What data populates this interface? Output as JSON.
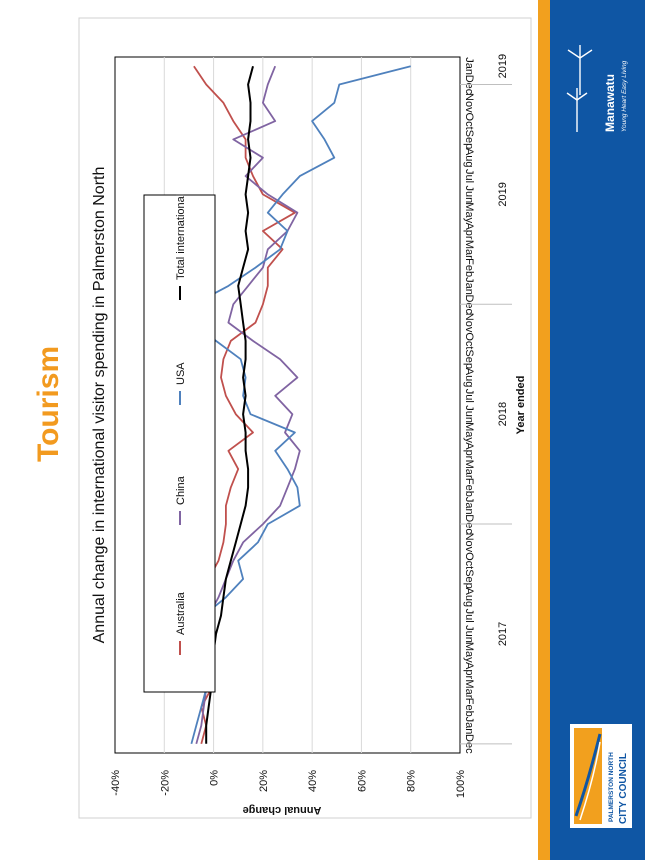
{
  "slide": {
    "heading": "Tourism",
    "chart_title": "Annual change in international visitor spending in Palmerston North",
    "colors": {
      "heading": "#f29a1f",
      "band": "#f2a01e",
      "panel": "#0f56a4"
    }
  },
  "branding": {
    "brand_name": "Manawatu",
    "brand_tagline": "Young Heart Easy Living",
    "council_line1": "PALMERSTON NORTH",
    "council_line2": "CITY COUNCIL"
  },
  "chart_data": {
    "type": "line",
    "title": "Annual change in international visitor spending in Palmerston North",
    "xlabel": "Year ended",
    "ylabel": "Annual change",
    "ylim": [
      -40,
      100
    ],
    "yticks": [
      "-40%",
      "-20%",
      "0%",
      "20%",
      "40%",
      "60%",
      "80%",
      "100%"
    ],
    "grid": true,
    "legend_position": "top",
    "x": [
      "Dec",
      "Jan",
      "Feb",
      "Mar",
      "Apr",
      "May",
      "Jun",
      "Jul",
      "Aug",
      "Sep",
      "Oct",
      "Nov",
      "Dec",
      "Jan",
      "Feb",
      "Mar",
      "Apr",
      "May",
      "Jun",
      "Jul",
      "Aug",
      "Sep",
      "Oct",
      "Nov",
      "Dec",
      "Jan",
      "Feb",
      "Mar",
      "Apr",
      "May",
      "Jun",
      "Jul",
      "Aug",
      "Sep",
      "Oct",
      "Nov",
      "Dec",
      "Jan"
    ],
    "year_labels": [
      {
        "label": "2017",
        "month_index": 6
      },
      {
        "label": "2018",
        "month_index": 18
      },
      {
        "label": "2019",
        "month_index": 30
      },
      {
        "label": "2019",
        "month_index": 37
      }
    ],
    "year_separators": [
      0.5,
      12.5,
      24.5,
      36.5
    ],
    "series": [
      {
        "name": "Australia",
        "color": "#c0504d",
        "values": [
          -5,
          -3,
          -5,
          -1,
          -2,
          -1,
          -1,
          -5,
          -3,
          -2,
          2,
          4,
          5,
          5,
          7,
          10,
          6,
          16,
          9,
          5,
          3,
          4,
          7,
          17,
          20,
          22,
          22,
          28,
          20,
          33,
          20,
          16,
          13,
          13,
          8,
          4,
          -3,
          -8
        ]
      },
      {
        "name": "China",
        "color": "#8064a2",
        "values": [
          -7,
          -5,
          -4,
          -3,
          -4,
          -5,
          -3,
          -2,
          2,
          5,
          8,
          12,
          20,
          27,
          30,
          33,
          35,
          29,
          32,
          25,
          34,
          27,
          16,
          6,
          8,
          14,
          20,
          22,
          30,
          34,
          22,
          13,
          20,
          8,
          25,
          20,
          22,
          25
        ]
      },
      {
        "name": "USA",
        "color": "#4f81bd",
        "values": [
          -9,
          -7,
          -5,
          -3,
          -10,
          -8,
          -6,
          -4,
          5,
          12,
          10,
          18,
          22,
          35,
          34,
          30,
          25,
          33,
          15,
          12,
          13,
          11,
          1,
          -7,
          -8,
          6,
          17,
          27,
          30,
          22,
          28,
          35,
          49,
          45,
          40,
          49,
          51,
          80
        ]
      },
      {
        "name": "Total international",
        "color": "#000000",
        "values": [
          -3,
          -3,
          -2,
          -1,
          -1,
          0,
          1,
          3,
          4,
          5,
          7,
          9,
          11,
          13,
          14,
          14,
          13,
          13,
          12,
          13,
          12,
          13,
          13,
          12,
          11,
          10,
          12,
          14,
          13,
          14,
          13,
          14,
          15,
          14,
          15,
          15,
          14,
          16
        ]
      }
    ]
  }
}
